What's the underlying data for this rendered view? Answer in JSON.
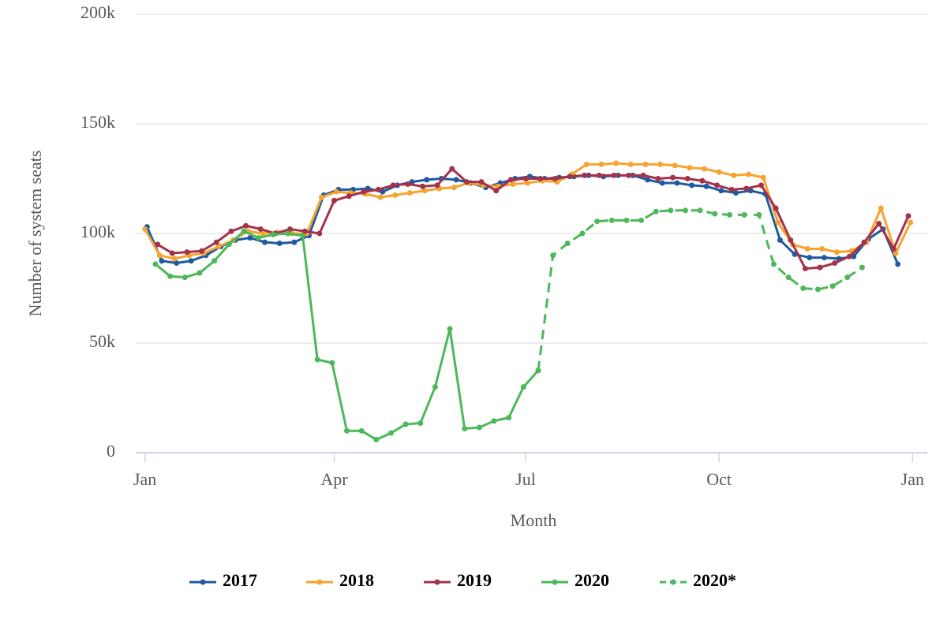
{
  "chart_data": {
    "type": "line",
    "xlabel": "Month",
    "ylabel": "Number of system seats",
    "xlim": [
      -7,
      372
    ],
    "ylim": [
      0,
      200000
    ],
    "xticks": [
      {
        "value": 0,
        "label": "Jan"
      },
      {
        "value": 90,
        "label": "Apr"
      },
      {
        "value": 181,
        "label": "Jul"
      },
      {
        "value": 273,
        "label": "Oct"
      },
      {
        "value": 365,
        "label": "Jan"
      }
    ],
    "yticks": [
      {
        "value": 0,
        "label": "0"
      },
      {
        "value": 50000,
        "label": "50k"
      },
      {
        "value": 100000,
        "label": "100k"
      },
      {
        "value": 150000,
        "label": "150k"
      },
      {
        "value": 200000,
        "label": "200k"
      }
    ],
    "grid": true,
    "legend": "bottom",
    "series": [
      {
        "name": "2017",
        "color": "#1f5aa0",
        "dashed": false,
        "x": [
          1,
          8,
          15,
          22,
          29,
          36,
          43,
          50,
          57,
          64,
          71,
          78,
          85,
          92,
          99,
          106,
          113,
          120,
          127,
          134,
          141,
          148,
          155,
          162,
          169,
          176,
          183,
          190,
          197,
          204,
          211,
          218,
          225,
          232,
          239,
          246,
          253,
          260,
          267,
          274,
          281,
          288,
          295,
          302,
          309,
          316,
          323,
          330,
          337,
          344,
          351,
          358
        ],
        "values": [
          103000,
          87500,
          86500,
          87500,
          90000,
          94000,
          97000,
          98000,
          96000,
          95500,
          96000,
          99000,
          117500,
          120000,
          120000,
          120500,
          119000,
          122000,
          123500,
          124500,
          125000,
          124500,
          123000,
          121000,
          123000,
          125000,
          126000,
          125000,
          125500,
          126000,
          126500,
          126000,
          126500,
          126500,
          124500,
          123000,
          123000,
          122000,
          121500,
          119500,
          118500,
          119500,
          118000,
          97000,
          90500,
          89000,
          89000,
          88500,
          89500,
          97500,
          102000,
          86000
        ]
      },
      {
        "name": "2018",
        "color": "#f7a330",
        "dashed": false,
        "x": [
          0,
          7,
          14,
          21,
          28,
          35,
          42,
          49,
          56,
          63,
          70,
          77,
          84,
          91,
          98,
          105,
          112,
          119,
          126,
          133,
          140,
          147,
          154,
          161,
          168,
          175,
          182,
          189,
          196,
          203,
          210,
          217,
          224,
          231,
          238,
          245,
          252,
          259,
          266,
          273,
          280,
          287,
          294,
          301,
          308,
          315,
          322,
          329,
          336,
          343,
          350,
          357,
          364
        ],
        "values": [
          102000,
          90000,
          88500,
          90000,
          91000,
          94000,
          97000,
          101000,
          100000,
          100500,
          100000,
          100000,
          116500,
          119000,
          118500,
          118000,
          116500,
          117500,
          118500,
          119500,
          120500,
          121000,
          123000,
          122000,
          121500,
          122500,
          123000,
          124000,
          123500,
          127000,
          131500,
          131500,
          132000,
          131500,
          131500,
          131500,
          131000,
          130000,
          129500,
          128000,
          126500,
          127000,
          125500,
          105000,
          95000,
          93000,
          93000,
          91500,
          92000,
          96000,
          111500,
          91000,
          105000
        ]
      },
      {
        "name": "2019",
        "color": "#a3324a",
        "dashed": false,
        "x": [
          6,
          13,
          20,
          27,
          34,
          41,
          48,
          55,
          62,
          69,
          76,
          83,
          90,
          97,
          104,
          111,
          118,
          125,
          132,
          139,
          146,
          153,
          160,
          167,
          174,
          181,
          188,
          195,
          202,
          209,
          216,
          223,
          230,
          237,
          244,
          251,
          258,
          265,
          272,
          279,
          286,
          293,
          300,
          307,
          314,
          321,
          328,
          335,
          342,
          349,
          356,
          363
        ],
        "values": [
          95000,
          91000,
          91500,
          92000,
          96000,
          101000,
          103500,
          102000,
          100000,
          102000,
          101000,
          100000,
          115000,
          117000,
          119000,
          120000,
          122000,
          122500,
          121500,
          122000,
          129500,
          123500,
          123500,
          119500,
          124500,
          125000,
          125000,
          125000,
          126000,
          126500,
          126500,
          126500,
          126500,
          126500,
          125000,
          125500,
          125000,
          124000,
          122000,
          120000,
          120500,
          122000,
          111500,
          97000,
          84000,
          84500,
          86500,
          89500,
          96000,
          104500,
          93000,
          108000
        ]
      },
      {
        "name": "2020",
        "color": "#4cb85a",
        "dashed": false,
        "x": [
          5,
          12,
          19,
          26,
          33,
          40,
          47,
          54,
          61,
          68,
          75,
          82,
          89,
          96,
          103,
          110,
          117,
          124,
          131,
          138,
          145,
          152,
          159,
          166,
          173,
          180,
          187
        ],
        "values": [
          86000,
          80500,
          80000,
          82000,
          87500,
          95000,
          101000,
          98000,
          99500,
          100000,
          99000,
          42500,
          41000,
          10000,
          10000,
          6000,
          9000,
          13000,
          13500,
          30000,
          56500,
          11000,
          11500,
          14500,
          16000,
          30000,
          37500
        ]
      },
      {
        "name": "2020*",
        "color": "#4cb85a",
        "dashed": true,
        "x": [
          187,
          194,
          201,
          208,
          215,
          222,
          229,
          236,
          243,
          250,
          257,
          264,
          271,
          278,
          285,
          292,
          299,
          306,
          313,
          320,
          327,
          334,
          341
        ],
        "values": [
          37500,
          90000,
          95500,
          100000,
          105500,
          106000,
          106000,
          106000,
          110000,
          110500,
          110500,
          110500,
          109000,
          108500,
          108500,
          108500,
          86000,
          80000,
          75000,
          74500,
          76000,
          80000,
          84500
        ]
      }
    ]
  }
}
